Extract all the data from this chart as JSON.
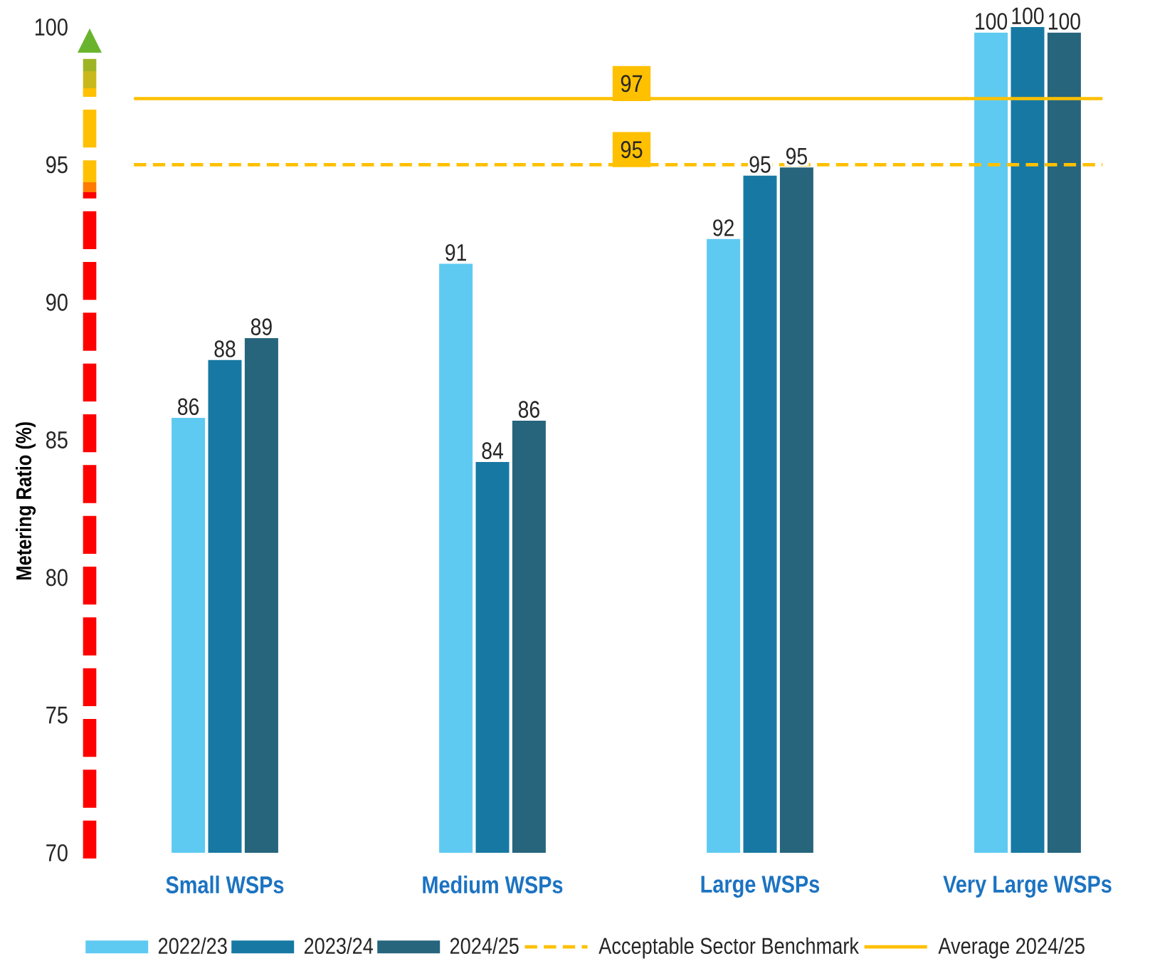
{
  "chart_data": {
    "type": "bar",
    "ylabel": "Metering Ratio (%)",
    "categories": [
      "Small WSPs",
      "Medium WSPs",
      "Large WSPs",
      "Very Large WSPs"
    ],
    "series": [
      {
        "name": "2022/23",
        "color": "#5ecaf1",
        "values": [
          85.8,
          91.4,
          92.3,
          99.8
        ],
        "value_labels": [
          "86",
          "91",
          "92",
          "100"
        ]
      },
      {
        "name": "2023/24",
        "color": "#1779a3",
        "values": [
          87.9,
          84.2,
          94.6,
          100.0
        ],
        "value_labels": [
          "88",
          "84",
          "95",
          "100"
        ]
      },
      {
        "name": "2024/25",
        "color": "#27657d",
        "values": [
          88.7,
          85.7,
          94.9,
          99.8
        ],
        "value_labels": [
          "89",
          "86",
          "95",
          "100"
        ]
      }
    ],
    "ylim": [
      70,
      100
    ],
    "yticks": [
      70,
      75,
      80,
      85,
      90,
      95,
      100
    ],
    "ref_lines": [
      {
        "axis": "y",
        "value": 95,
        "label": "Acceptable Sector Benchmark",
        "color": "#ffc000",
        "line_style": "dashed"
      },
      {
        "axis": "y",
        "value": 97.4,
        "label": "Average 2024/25",
        "color": "#ffc000",
        "line_style": "solid"
      }
    ],
    "annotations": [
      {
        "text": "97",
        "y": 97.4
      },
      {
        "text": "95",
        "y": 95
      }
    ],
    "legend": "bottom"
  }
}
